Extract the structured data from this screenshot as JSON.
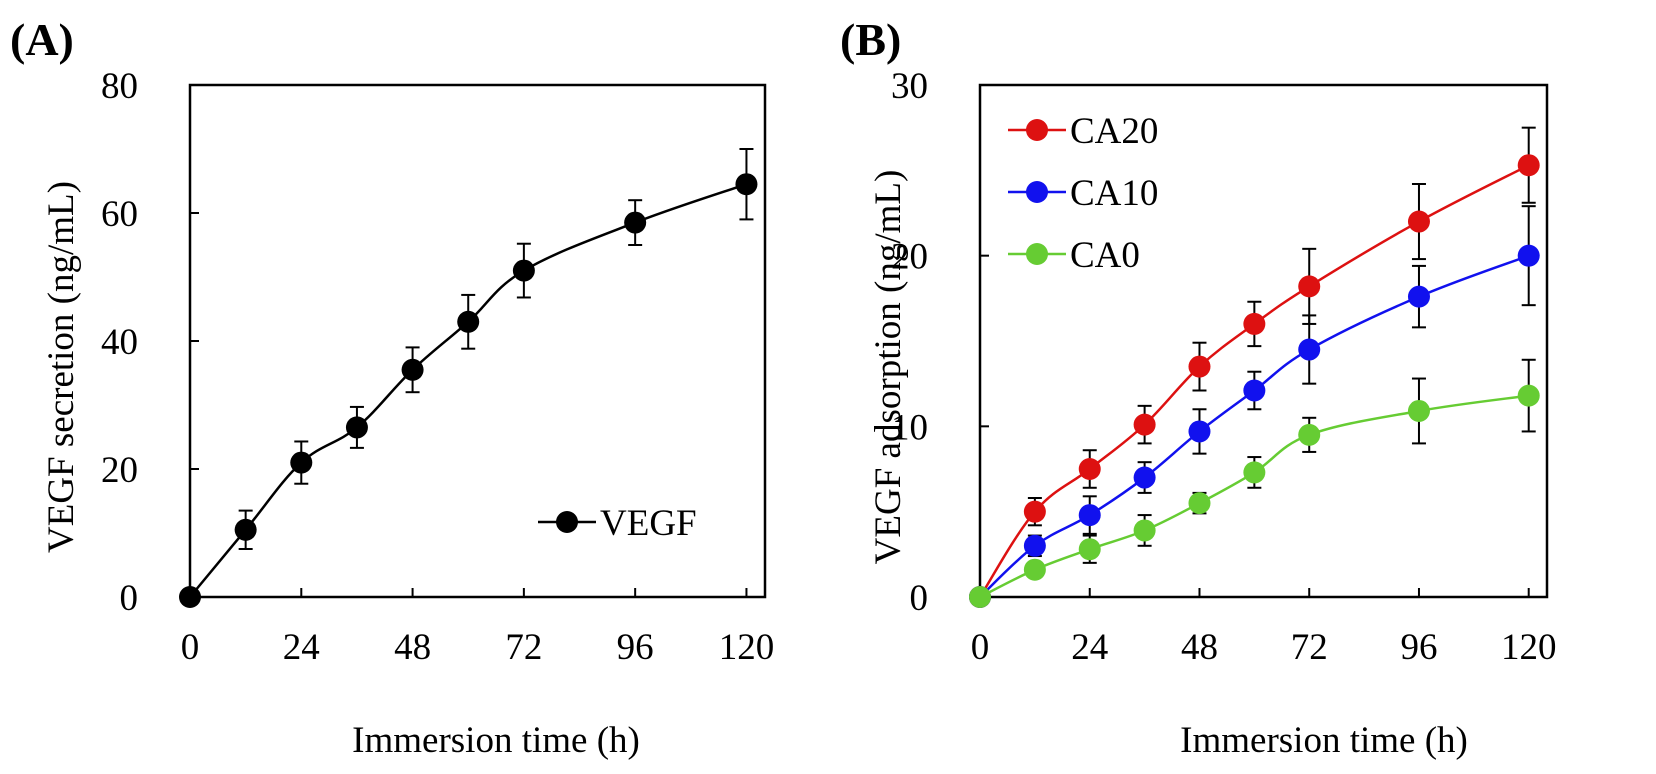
{
  "chart_data": [
    {
      "panel": "(A)",
      "type": "line",
      "xlabel": "Immersion time (h)",
      "ylabel": "VEGF secretion (ng/mL)",
      "xlim": [
        0,
        124
      ],
      "ylim": [
        0,
        80
      ],
      "xticks": [
        0,
        24,
        48,
        72,
        96,
        120
      ],
      "yticks": [
        0,
        20,
        40,
        60,
        80
      ],
      "legend_position": "bottom-right",
      "series": [
        {
          "name": "VEGF",
          "color": "#000000",
          "x": [
            0,
            12,
            24,
            36,
            48,
            60,
            72,
            96,
            120
          ],
          "y": [
            0,
            10.5,
            21,
            26.5,
            35.5,
            43,
            51,
            58.5,
            64.5
          ],
          "err": [
            0,
            3,
            3.3,
            3.2,
            3.5,
            4.2,
            4.2,
            3.5,
            5.5
          ]
        }
      ]
    },
    {
      "panel": "(B)",
      "type": "line",
      "xlabel": "Immersion time (h)",
      "ylabel": "VEGF adsorption (ng/mL)",
      "xlim": [
        0,
        124
      ],
      "ylim": [
        0,
        30
      ],
      "xticks": [
        0,
        24,
        48,
        72,
        96,
        120
      ],
      "yticks": [
        0,
        10,
        20,
        30
      ],
      "legend_position": "top-left",
      "series": [
        {
          "name": "CA20",
          "color": "#dd1111",
          "x": [
            0,
            12,
            24,
            36,
            48,
            60,
            72,
            96,
            120
          ],
          "y": [
            0,
            5,
            7.5,
            10.1,
            13.5,
            16,
            18.2,
            22,
            25.3
          ],
          "err": [
            0,
            0.8,
            1.1,
            1.1,
            1.4,
            1.3,
            2.2,
            2.2,
            2.2
          ]
        },
        {
          "name": "CA10",
          "color": "#1111ee",
          "x": [
            0,
            12,
            24,
            36,
            48,
            60,
            72,
            96,
            120
          ],
          "y": [
            0,
            3,
            4.8,
            7,
            9.7,
            12.1,
            14.5,
            17.6,
            20
          ],
          "err": [
            0,
            0.6,
            1.1,
            0.9,
            1.3,
            1.1,
            2.0,
            1.8,
            2.9
          ]
        },
        {
          "name": "CA0",
          "color": "#66cc33",
          "x": [
            0,
            12,
            24,
            36,
            48,
            60,
            72,
            96,
            120
          ],
          "y": [
            0,
            1.6,
            2.8,
            3.9,
            5.5,
            7.3,
            9.5,
            10.9,
            11.8
          ],
          "err": [
            0,
            0.4,
            0.8,
            0.9,
            0.6,
            0.9,
            1.0,
            1.9,
            2.1
          ]
        }
      ]
    }
  ]
}
